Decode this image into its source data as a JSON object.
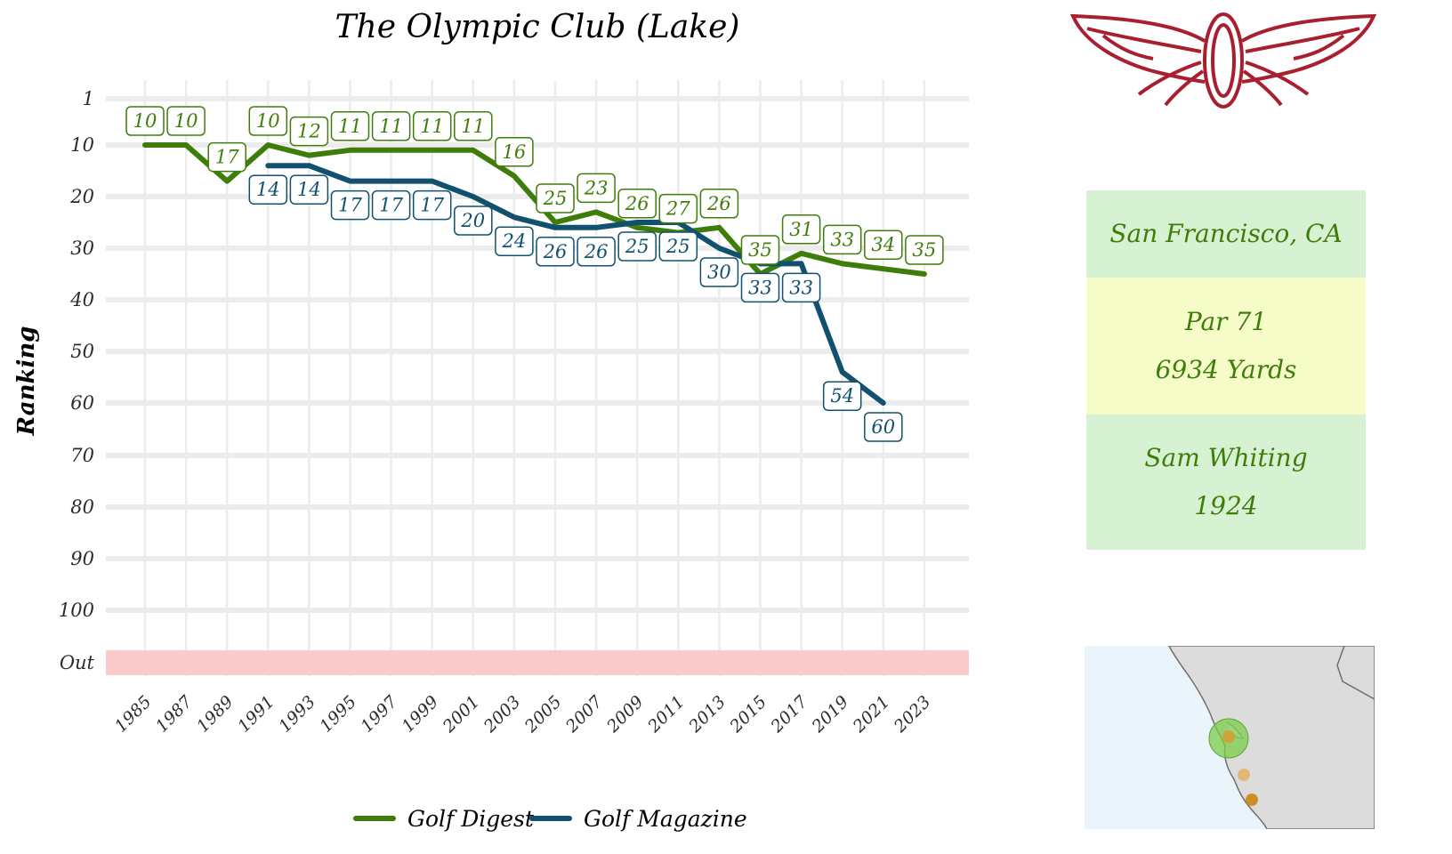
{
  "title": "The Olympic Club (Lake)",
  "chart_data": {
    "type": "line",
    "title": "The Olympic Club (Lake)",
    "xlabel": "",
    "ylabel": "Ranking",
    "x_ticks": [
      "1985",
      "1987",
      "1989",
      "1991",
      "1993",
      "1995",
      "1997",
      "1999",
      "2001",
      "2003",
      "2005",
      "2007",
      "2009",
      "2011",
      "2013",
      "2015",
      "2017",
      "2019",
      "2021",
      "2023"
    ],
    "y_ticks": [
      "1",
      "10",
      "20",
      "30",
      "40",
      "50",
      "60",
      "70",
      "80",
      "90",
      "100",
      "Out"
    ],
    "y_reversed": true,
    "grid": true,
    "out_band_color": "#fbcaca",
    "legend_position": "bottom",
    "series": [
      {
        "name": "Golf Digest",
        "color": "#3f7d0a",
        "x": [
          1985,
          1987,
          1989,
          1991,
          1993,
          1995,
          1997,
          1999,
          2001,
          2003,
          2005,
          2007,
          2009,
          2011,
          2013,
          2015,
          2017,
          2019,
          2021,
          2023
        ],
        "values": [
          10,
          10,
          17,
          10,
          12,
          11,
          11,
          11,
          11,
          16,
          25,
          23,
          26,
          27,
          26,
          35,
          31,
          33,
          34,
          35
        ]
      },
      {
        "name": "Golf Magazine",
        "color": "#11506e",
        "x": [
          1991,
          1993,
          1995,
          1997,
          1999,
          2001,
          2003,
          2005,
          2007,
          2009,
          2011,
          2013,
          2015,
          2017,
          2019,
          2021
        ],
        "values": [
          14,
          14,
          17,
          17,
          17,
          20,
          24,
          26,
          26,
          25,
          25,
          30,
          33,
          33,
          54,
          60
        ]
      }
    ]
  },
  "info": {
    "location": "San Francisco, CA",
    "par": "Par 71",
    "yards": "6934 Yards",
    "architect": "Sam Whiting",
    "year": "1924"
  },
  "colors": {
    "info_green": "#d6f2d2",
    "info_yellow": "#f5fcc8",
    "logo": "#a8202f"
  },
  "logo_icon": "winged-o-logo-icon",
  "map_icon": "california-coast-map-icon"
}
